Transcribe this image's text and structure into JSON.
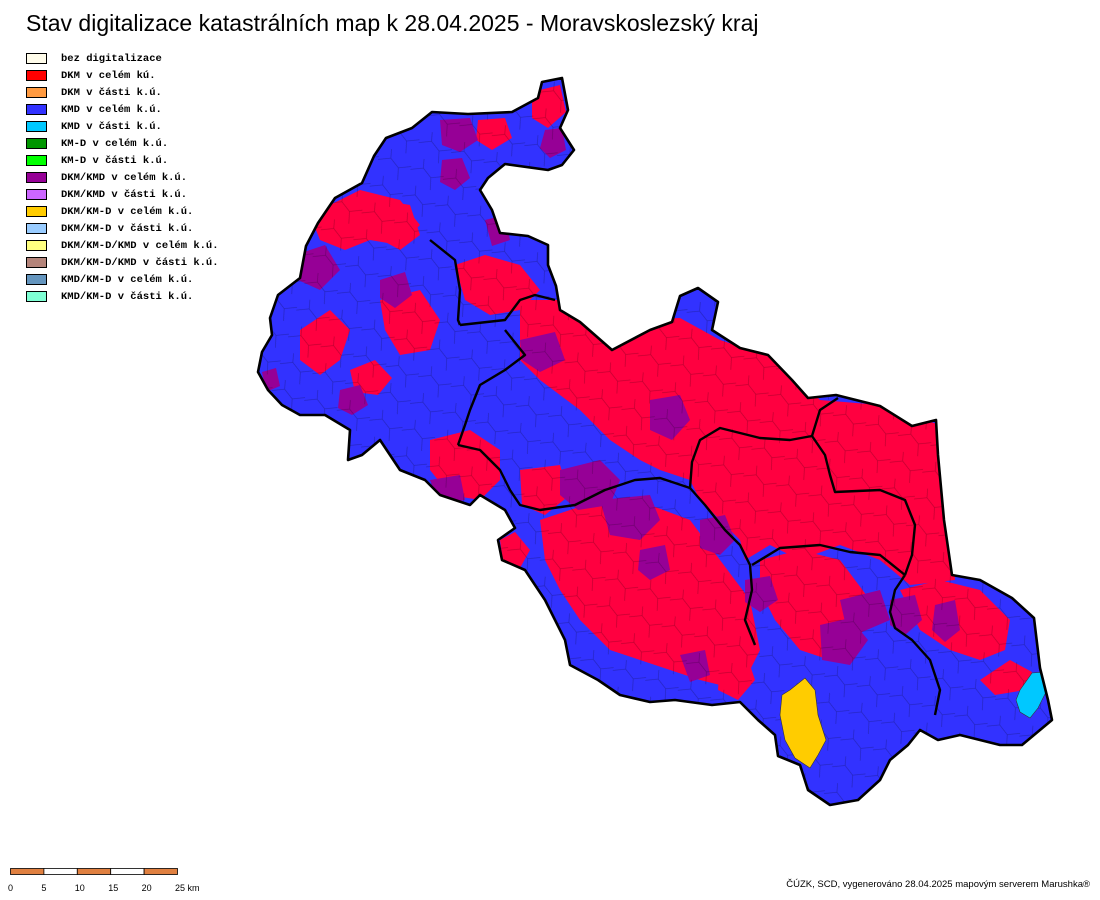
{
  "title": "Stav digitalizace katastrálních map k 28.04.2025 - Moravskoslezský kraj",
  "legend": [
    {
      "label": "bez digitalizace",
      "color": "#FFFCEA"
    },
    {
      "label": "DKM v celém kú.",
      "color": "#FF0000"
    },
    {
      "label": "DKM v části k.ú.",
      "color": "#FF9A40"
    },
    {
      "label": "KMD v celém k.ú.",
      "color": "#3232FF"
    },
    {
      "label": "KMD v části k.ú.",
      "color": "#00C8FF"
    },
    {
      "label": "KM-D v celém k.ú.",
      "color": "#009600"
    },
    {
      "label": "KM-D v části k.ú.",
      "color": "#00FF00"
    },
    {
      "label": "DKM/KMD v celém k.ú.",
      "color": "#960096"
    },
    {
      "label": "DKM/KMD v části k.ú.",
      "color": "#CC66FF"
    },
    {
      "label": "DKM/KM-D v celém k.ú.",
      "color": "#FFCC00"
    },
    {
      "label": "DKM/KM-D v části k.ú.",
      "color": "#99CCFF"
    },
    {
      "label": "DKM/KM-D/KMD v celém k.ú.",
      "color": "#FFFF80"
    },
    {
      "label": "DKM/KM-D/KMD v části k.ú.",
      "color": "#B4847A"
    },
    {
      "label": "KMD/KM-D v celém k.ú.",
      "color": "#6495BE"
    },
    {
      "label": "KMD/KM-D v části k.ú.",
      "color": "#7FFFD4"
    }
  ],
  "scale": {
    "labels": [
      "0",
      "5",
      "10",
      "15",
      "20",
      "25 km"
    ],
    "colors": [
      "#E08040",
      "#FFFFFF"
    ]
  },
  "credit": "ČÚZK, SCD, vygenerováno 28.04.2025 mapovým serverem Marushka®"
}
